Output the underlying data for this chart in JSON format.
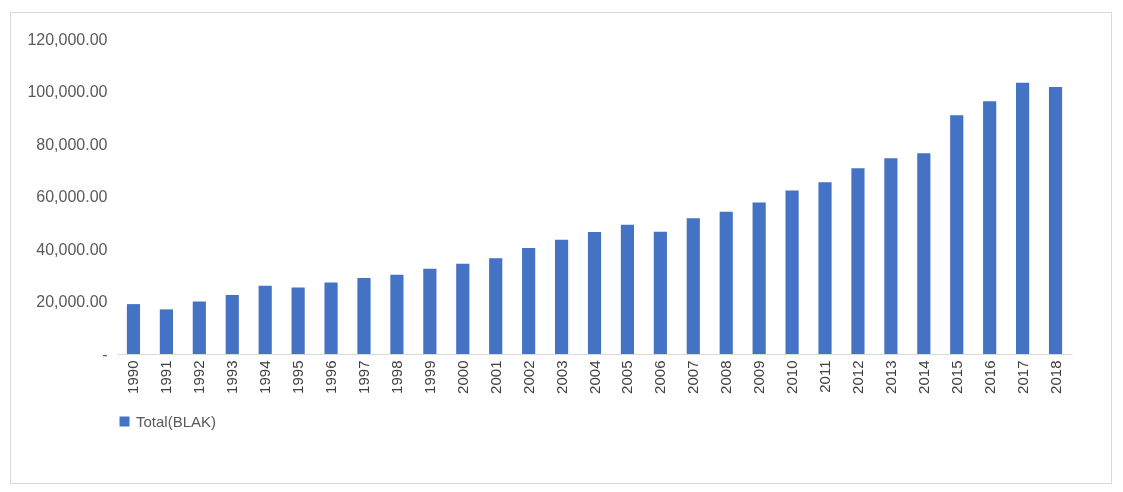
{
  "chart_data": {
    "type": "bar",
    "categories": [
      "1990",
      "1991",
      "1992",
      "1993",
      "1994",
      "1995",
      "1996",
      "1997",
      "1998",
      "1999",
      "2000",
      "2001",
      "2002",
      "2003",
      "2004",
      "2005",
      "2006",
      "2007",
      "2008",
      "2009",
      "2010",
      "2011",
      "2012",
      "2013",
      "2014",
      "2015",
      "2016",
      "2017",
      "2018"
    ],
    "series": [
      {
        "name": "Total(BLAK)",
        "color": "#4472c4",
        "values": [
          19000,
          17000,
          20000,
          22500,
          26000,
          25300,
          27200,
          29000,
          30200,
          32500,
          34400,
          36500,
          40400,
          43500,
          46500,
          49200,
          46600,
          51700,
          54200,
          57700,
          62300,
          65400,
          70800,
          74600,
          76500,
          91000,
          96300,
          103300,
          101700
        ]
      }
    ],
    "ylim": [
      0,
      120000
    ],
    "yticks": [
      {
        "value": 0,
        "label": "-"
      },
      {
        "value": 20000,
        "label": "20,000.00"
      },
      {
        "value": 40000,
        "label": "40,000.00"
      },
      {
        "value": 60000,
        "label": "60,000.00"
      },
      {
        "value": 80000,
        "label": "80,000.00"
      },
      {
        "value": 100000,
        "label": "100,000.00"
      },
      {
        "value": 120000,
        "label": "120,000.00"
      }
    ],
    "grid": false,
    "legend": "bottom"
  }
}
